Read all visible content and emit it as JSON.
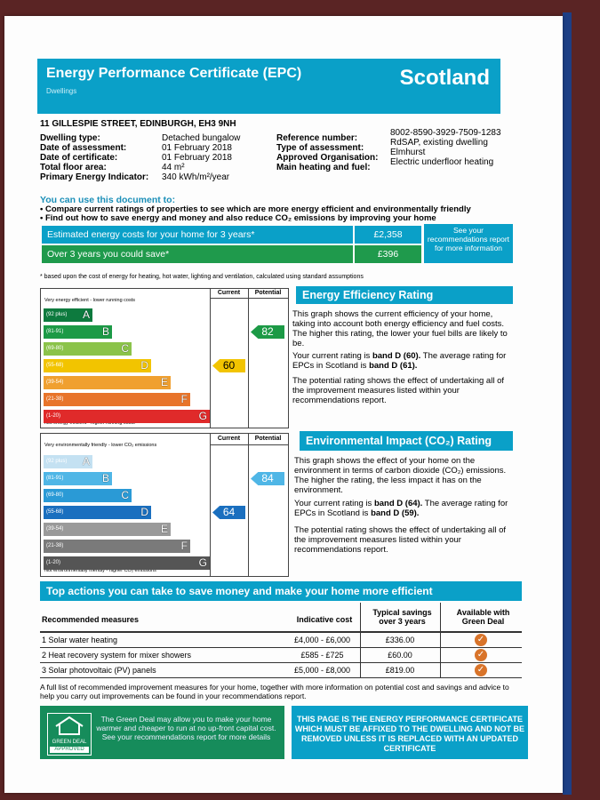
{
  "header": {
    "title": "Energy Performance Certificate (EPC)",
    "subtitle": "Dwellings",
    "region": "Scotland"
  },
  "address": "11 GILLESPIE STREET, EDINBURGH, EH3 9NH",
  "details_left": [
    {
      "label": "Dwelling type:",
      "value": "Detached bungalow"
    },
    {
      "label": "Date of assessment:",
      "value": "01 February 2018"
    },
    {
      "label": "Date of certificate:",
      "value": "01 February 2018"
    },
    {
      "label": "Total floor area:",
      "value": "44 m²"
    },
    {
      "label": "Primary Energy Indicator:",
      "value": "340 kWh/m²/year"
    }
  ],
  "details_right": [
    {
      "label": "Reference number:",
      "value": "8002-8590-3929-7509-1283"
    },
    {
      "label": "Type of assessment:",
      "value": "RdSAP, existing dwelling"
    },
    {
      "label": "Approved Organisation:",
      "value": "Elmhurst"
    },
    {
      "label": "Main heating and fuel:",
      "value": "Electric underfloor heating"
    }
  ],
  "use": {
    "heading": "You can use this document to:",
    "items": [
      "Compare current ratings of properties to see which are more energy efficient and environmentally friendly",
      "Find out how to save energy and money and also reduce CO₂ emissions by improving your home"
    ]
  },
  "costs": {
    "row1_label": "Estimated energy costs for your home for 3 years*",
    "row1_value": "£2,358",
    "row2_label": "Over 3 years you could save*",
    "row2_value": "£396",
    "see_box": "See your recommendations report for more information",
    "note": "* based upon the cost of energy for heating, hot water, lighting and ventilation, calculated using standard assumptions",
    "colors": {
      "row1": "#0aa0c8",
      "row2": "#1f9a4c"
    }
  },
  "ee": {
    "col_current": "Current",
    "col_potential": "Potential",
    "top_label": "Very energy efficient - lower running costs",
    "bottom_label": "Not energy efficient - higher running costs",
    "bands": [
      {
        "range": "(92 plus)",
        "letter": "A",
        "color": "#0d7a3e"
      },
      {
        "range": "(81-91)",
        "letter": "B",
        "color": "#1c9a46"
      },
      {
        "range": "(69-80)",
        "letter": "C",
        "color": "#8bc34a"
      },
      {
        "range": "(55-68)",
        "letter": "D",
        "color": "#f2c400"
      },
      {
        "range": "(39-54)",
        "letter": "E",
        "color": "#f0a030"
      },
      {
        "range": "(21-38)",
        "letter": "F",
        "color": "#e8742a"
      },
      {
        "range": "(1-20)",
        "letter": "G",
        "color": "#e02a2a"
      }
    ],
    "current": 60,
    "potential": 82,
    "current_color": "#f2c400",
    "potential_color": "#1c9a46"
  },
  "ee_text": {
    "heading": "Energy Efficiency Rating",
    "p1": "This graph shows the current efficiency of your home, taking into account both energy efficiency and fuel costs. The higher this rating, the lower your fuel bills are likely to be.",
    "p2a": "Your current rating is ",
    "p2b": "band D (60).",
    "p2c": " The average rating for EPCs in Scotland is ",
    "p2d": "band D (61).",
    "p3": "The potential rating shows the effect of undertaking all of the improvement measures listed within your recommendations report."
  },
  "ei": {
    "col_current": "Current",
    "col_potential": "Potential",
    "top_label": "Very environmentally friendly - lower CO₂ emissions",
    "bottom_label": "Not environmentally friendly - higher CO₂ emissions",
    "bands": [
      {
        "range": "(92 plus)",
        "letter": "A",
        "color": "#c4e1f2"
      },
      {
        "range": "(81-91)",
        "letter": "B",
        "color": "#4fb6e6"
      },
      {
        "range": "(69-80)",
        "letter": "C",
        "color": "#2a9ad6"
      },
      {
        "range": "(55-68)",
        "letter": "D",
        "color": "#1a6fbf"
      },
      {
        "range": "(39-54)",
        "letter": "E",
        "color": "#9a9a9a"
      },
      {
        "range": "(21-38)",
        "letter": "F",
        "color": "#7a7a7a"
      },
      {
        "range": "(1-20)",
        "letter": "G",
        "color": "#555555"
      }
    ],
    "current": 64,
    "potential": 84,
    "current_color": "#1a6fbf",
    "potential_color": "#4fb6e6"
  },
  "ei_text": {
    "heading": "Environmental Impact (CO₂) Rating",
    "p1": "This graph shows the effect of your home on the environment in terms of carbon dioxide (CO₂) emissions. The higher the rating, the less impact it has on the environment.",
    "p2a": "Your current rating is ",
    "p2b": "band D (64).",
    "p2c": " The average rating for EPCs in Scotland is ",
    "p2d": "band D (59).",
    "p3": "The potential rating shows the effect of undertaking all of the improvement measures listed within your recommendations report."
  },
  "actions": {
    "heading": "Top actions you can take to save money and make your home more efficient",
    "col_measure": "Recommended measures",
    "col_cost": "Indicative cost",
    "col_savings": "Typical savings over 3 years",
    "col_green": "Available with Green Deal",
    "rows": [
      {
        "measure": "1 Solar water heating",
        "cost": "£4,000 - £6,000",
        "savings": "£336.00"
      },
      {
        "measure": "2 Heat recovery system for mixer showers",
        "cost": "£585 - £725",
        "savings": "£60.00"
      },
      {
        "measure": "3 Solar photovoltaic (PV) panels",
        "cost": "£5,000 - £8,000",
        "savings": "£819.00"
      }
    ],
    "footnote": "A full list of recommended improvement measures for your home, together with more information on potential cost and savings and advice to help you carry out improvements can be found in your recommendations report.",
    "check_color": "#d9742a"
  },
  "greendeal": {
    "logo_top": "GREEN DEAL",
    "logo_bottom": "APPROVED",
    "text": "The Green Deal may allow you to make your home warmer and cheaper to run at no up-front capital cost. See your recommendations report for more details"
  },
  "page_notice": "THIS PAGE IS THE ENERGY PERFORMANCE CERTIFICATE WHICH MUST BE AFFIXED TO THE DWELLING AND NOT BE REMOVED UNLESS IT IS REPLACED WITH AN UPDATED CERTIFICATE"
}
